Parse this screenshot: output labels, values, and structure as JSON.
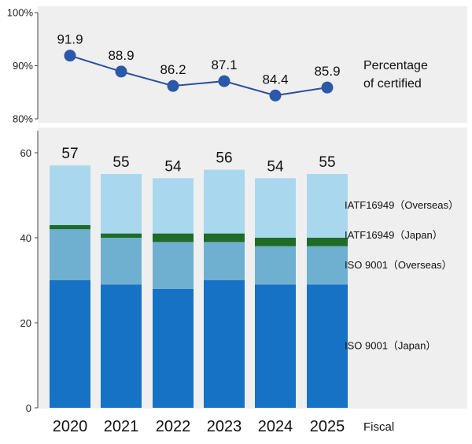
{
  "chart_data": [
    {
      "type": "line",
      "x": [
        "2020",
        "2021",
        "2022",
        "2023",
        "2024",
        "2025"
      ],
      "values": [
        91.9,
        88.9,
        86.2,
        87.1,
        84.4,
        85.9
      ],
      "value_labels": [
        "91.9",
        "88.9",
        "86.2",
        "87.1",
        "84.4",
        "85.9"
      ],
      "label_lines": [
        "Percentage",
        "of certified"
      ],
      "ylim": [
        80,
        100
      ],
      "yticks": [
        80,
        90,
        100
      ],
      "ytick_labels": [
        "80%",
        "90%",
        "100%"
      ],
      "color": "#2a4f9c",
      "marker_color": "#2b58a8",
      "background": "#efefef"
    },
    {
      "type": "bar",
      "stacked": true,
      "categories": [
        "2020",
        "2021",
        "2022",
        "2023",
        "2024",
        "2025"
      ],
      "series": [
        {
          "name": "ISO 9001（Japan）",
          "values": [
            30,
            29,
            28,
            30,
            29,
            29
          ],
          "color": "#1672c4"
        },
        {
          "name": "ISO 9001（Overseas）",
          "values": [
            12,
            11,
            11,
            9,
            9,
            9
          ],
          "color": "#6fb0d0"
        },
        {
          "name": "IATF16949（Japan）",
          "values": [
            1,
            1,
            2,
            2,
            2,
            2
          ],
          "color": "#1f6b28"
        },
        {
          "name": "IATF16949（Overseas）",
          "values": [
            14,
            14,
            13,
            15,
            14,
            15
          ],
          "color": "#a9d8ee"
        }
      ],
      "totals": [
        "57",
        "55",
        "54",
        "56",
        "54",
        "55"
      ],
      "ylim": [
        0,
        60
      ],
      "yticks": [
        0,
        20,
        40,
        60
      ],
      "ytick_labels": [
        "0",
        "20",
        "40",
        "60"
      ],
      "xlabel": "Fiscal",
      "background": "#efefef"
    }
  ]
}
